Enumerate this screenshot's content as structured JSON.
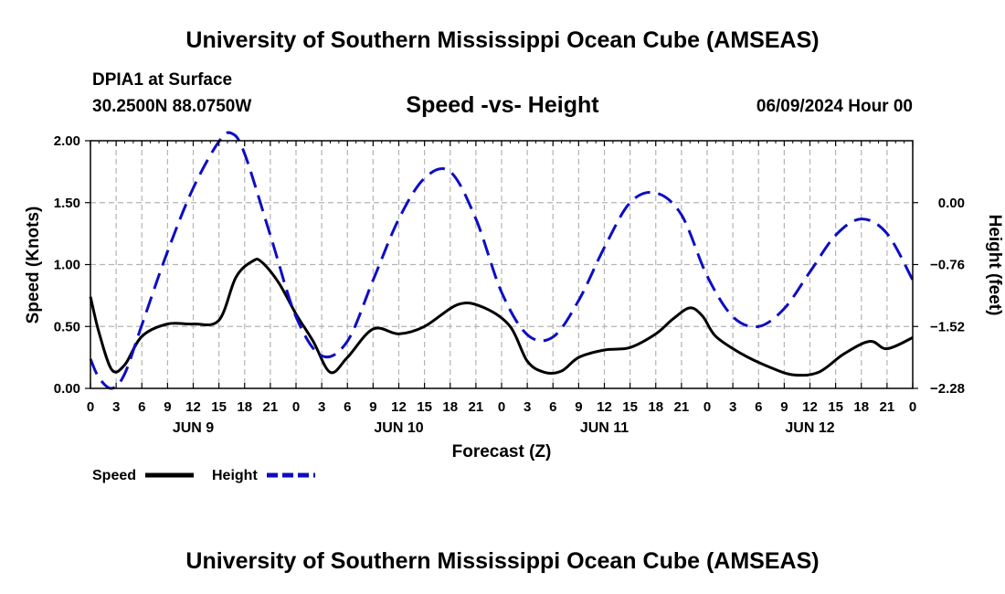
{
  "header": {
    "title": "University of Southern Mississippi Ocean Cube (AMSEAS)",
    "station": "DPIA1 at Surface",
    "coords": "30.2500N  88.0750W",
    "run_time": "06/09/2024 Hour 00",
    "footer_title": "University of Southern Mississippi Ocean Cube (AMSEAS)"
  },
  "chart_data": {
    "type": "line",
    "title": "Speed -vs- Height",
    "xlabel": "Forecast (Z)",
    "ylabel": "Speed (Knots)",
    "y2label": "Height (feet)",
    "x_unit": "forecast hour",
    "xlim": [
      0,
      96
    ],
    "ylim": [
      0,
      2.0
    ],
    "y2lim": [
      -2.28,
      0.76
    ],
    "grid": true,
    "x_ticks": [
      0,
      3,
      6,
      9,
      12,
      15,
      18,
      21,
      24,
      27,
      30,
      33,
      36,
      39,
      42,
      45,
      48,
      51,
      54,
      57,
      60,
      63,
      66,
      69,
      72,
      75,
      78,
      81,
      84,
      87,
      90,
      93,
      96
    ],
    "x_tick_labels": [
      "0",
      "3",
      "6",
      "9",
      "12",
      "15",
      "18",
      "21",
      "0",
      "3",
      "6",
      "9",
      "12",
      "15",
      "18",
      "21",
      "0",
      "3",
      "6",
      "9",
      "12",
      "15",
      "18",
      "21",
      "0",
      "3",
      "6",
      "9",
      "12",
      "15",
      "18",
      "21",
      "0"
    ],
    "day_labels": [
      {
        "hour": 12,
        "label": "JUN 9"
      },
      {
        "hour": 36,
        "label": "JUN 10"
      },
      {
        "hour": 60,
        "label": "JUN 11"
      },
      {
        "hour": 84,
        "label": "JUN 12"
      }
    ],
    "y_ticks": [
      0.0,
      0.5,
      1.0,
      1.5,
      2.0
    ],
    "y_tick_labels": [
      "0.00",
      "0.50",
      "1.00",
      "1.50",
      "2.00"
    ],
    "y2_ticks": [
      -2.28,
      -1.52,
      -0.76,
      0.0
    ],
    "y2_tick_labels": [
      "−2.28",
      "−1.52",
      "−0.76",
      "0.00"
    ],
    "series": [
      {
        "name": "Speed",
        "axis": "left",
        "color": "#000000",
        "dash": "solid",
        "x": [
          0,
          1,
          2.5,
          4,
          6,
          9,
          12,
          15,
          17,
          19,
          20,
          22,
          24,
          26,
          28,
          30,
          33,
          36,
          39,
          43,
          46,
          49,
          51,
          53,
          55,
          57,
          60,
          63,
          66,
          68,
          70,
          71.5,
          73,
          76,
          79,
          82,
          85,
          88,
          91,
          93,
          96
        ],
        "y": [
          0.74,
          0.45,
          0.15,
          0.19,
          0.42,
          0.52,
          0.52,
          0.55,
          0.9,
          1.03,
          1.02,
          0.85,
          0.6,
          0.38,
          0.13,
          0.25,
          0.48,
          0.44,
          0.5,
          0.68,
          0.65,
          0.5,
          0.22,
          0.13,
          0.14,
          0.25,
          0.31,
          0.33,
          0.44,
          0.56,
          0.65,
          0.58,
          0.42,
          0.28,
          0.18,
          0.11,
          0.13,
          0.28,
          0.38,
          0.32,
          0.41
        ]
      },
      {
        "name": "Height",
        "axis": "right",
        "color": "#0d0dc4",
        "dash": "dashed",
        "x": [
          0,
          1,
          2.5,
          4,
          6,
          9,
          12,
          15,
          16.5,
          18,
          21,
          24,
          27,
          30,
          33,
          36,
          39,
          42,
          45,
          48,
          51,
          54,
          57,
          60,
          63,
          66,
          69,
          72,
          75,
          78,
          81,
          84,
          87,
          90,
          93,
          96
        ],
        "y": [
          -1.92,
          -2.15,
          -2.28,
          -2.1,
          -1.5,
          -0.6,
          0.18,
          0.75,
          0.85,
          0.6,
          -0.4,
          -1.4,
          -1.88,
          -1.7,
          -0.95,
          -0.2,
          0.3,
          0.38,
          -0.2,
          -1.1,
          -1.62,
          -1.65,
          -1.2,
          -0.55,
          0.0,
          0.12,
          -0.15,
          -0.9,
          -1.4,
          -1.52,
          -1.3,
          -0.85,
          -0.4,
          -0.2,
          -0.38,
          -0.95
        ]
      }
    ],
    "legend": [
      {
        "label": "Speed",
        "color": "#000000",
        "dash": "solid"
      },
      {
        "label": "Height",
        "color": "#0d0dc4",
        "dash": "dashed"
      }
    ],
    "legend_position": "bottom-left"
  }
}
